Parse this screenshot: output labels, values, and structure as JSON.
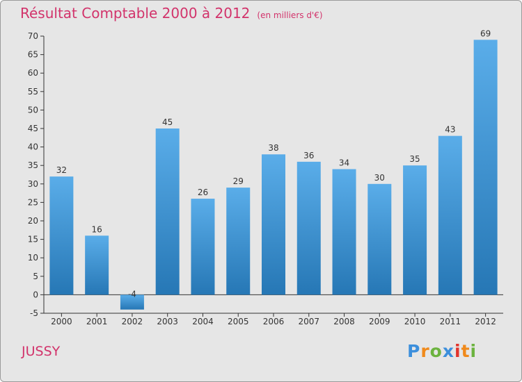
{
  "chart_data": {
    "type": "bar",
    "title": "Résultat Comptable 2000 à 2012",
    "subtitle": "(en milliers d'€)",
    "categories": [
      "2000",
      "2001",
      "2002",
      "2003",
      "2004",
      "2005",
      "2006",
      "2007",
      "2008",
      "2009",
      "2010",
      "2011",
      "2012"
    ],
    "values": [
      32,
      16,
      -4,
      45,
      26,
      29,
      38,
      36,
      34,
      30,
      35,
      43,
      69
    ],
    "value_labels": [
      "32",
      "16",
      "-4",
      "45",
      "26",
      "29",
      "38",
      "36",
      "34",
      "30",
      "35",
      "43",
      "69"
    ],
    "ylim": [
      -5,
      70
    ],
    "yticks": [
      -5,
      0,
      5,
      10,
      15,
      20,
      25,
      30,
      35,
      40,
      45,
      50,
      55,
      60,
      65,
      70
    ],
    "xlabel": "",
    "ylabel": "",
    "grid": false,
    "colors": {
      "bar_light": "#5aade9",
      "bar_dark": "#2677b5",
      "title": "#d2336b",
      "axis": "#333333",
      "background": "#e6e6e6"
    }
  },
  "location": "JUSSY",
  "logo": "Proxiti"
}
